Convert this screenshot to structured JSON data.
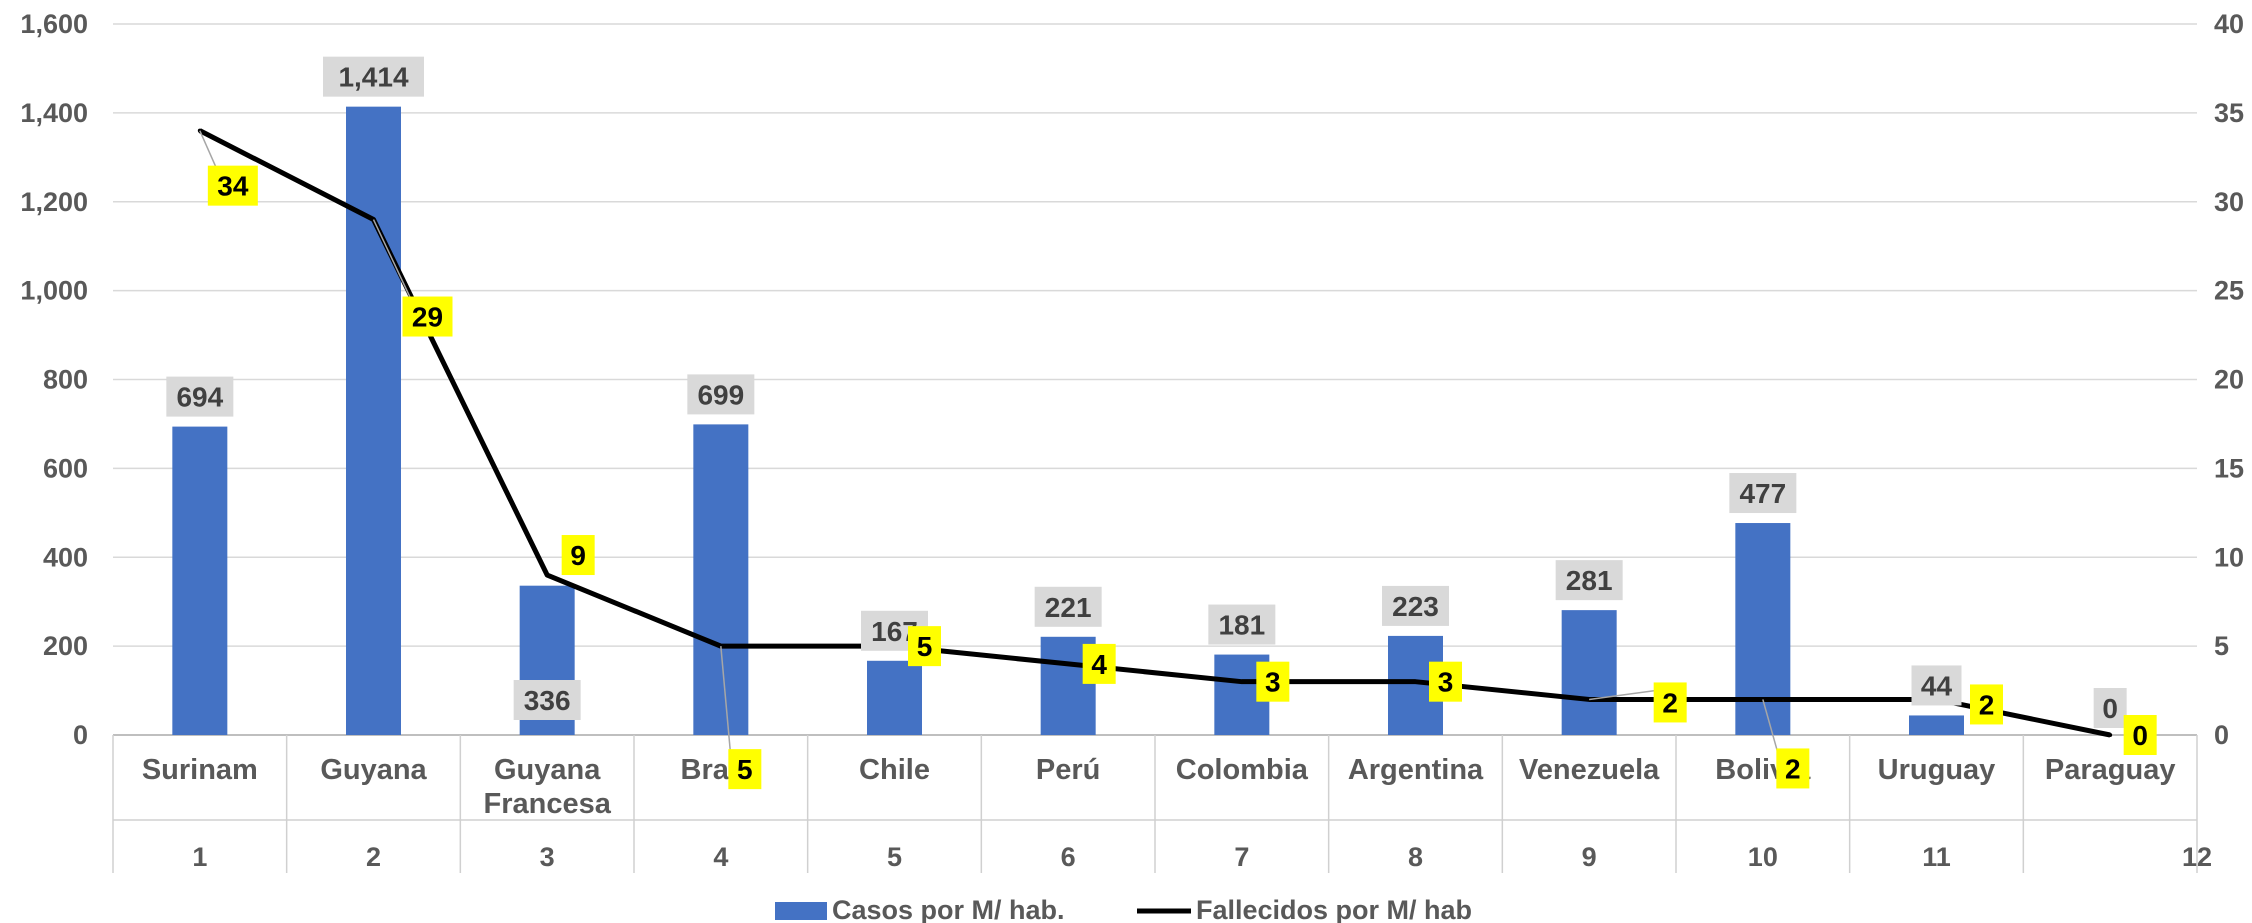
{
  "chart_data": {
    "type": "bar",
    "categories": [
      "Surinam",
      "Guyana",
      "Guyana Francesa",
      "Brasil",
      "Chile",
      "Perú",
      "Colombia",
      "Argentina",
      "Venezuela",
      "Bolivia",
      "Uruguay",
      "Paraguay"
    ],
    "category_lines": [
      [
        "Surinam"
      ],
      [
        "Guyana"
      ],
      [
        "Guyana",
        "Francesa"
      ],
      [
        "Brasil"
      ],
      [
        "Chile"
      ],
      [
        "Perú"
      ],
      [
        "Colombia"
      ],
      [
        "Argentina"
      ],
      [
        "Venezuela"
      ],
      [
        "Bolivia"
      ],
      [
        "Uruguay"
      ],
      [
        "Paraguay"
      ]
    ],
    "index_labels": [
      "1",
      "2",
      "3",
      "4",
      "5",
      "6",
      "7",
      "8",
      "9",
      "10",
      "11",
      "12"
    ],
    "series": [
      {
        "name": "Casos por M/ hab.",
        "type": "bar",
        "axis": "left",
        "color": "#4472C4",
        "values": [
          694,
          1414,
          336,
          699,
          167,
          221,
          181,
          223,
          281,
          477,
          44,
          0
        ],
        "labels": [
          "694",
          "1,414",
          "336",
          "699",
          "167",
          "221",
          "181",
          "223",
          "281",
          "477",
          "44",
          "0"
        ]
      },
      {
        "name": "Fallecidos por M/ hab",
        "type": "line",
        "axis": "right",
        "color": "#000000",
        "values": [
          34,
          29,
          9,
          5,
          5,
          4,
          3,
          3,
          2,
          2,
          2,
          0
        ],
        "labels": [
          "34",
          "29",
          "9",
          "5",
          "5",
          "4",
          "3",
          "3",
          "2",
          "2",
          "2",
          "0"
        ]
      }
    ],
    "y_left": {
      "min": 0,
      "max": 1600,
      "ticks": [
        "0",
        "200",
        "400",
        "600",
        "800",
        "1,000",
        "1,200",
        "1,400",
        "1,600"
      ]
    },
    "y_right": {
      "min": 0,
      "max": 40,
      "ticks": [
        "0",
        "5",
        "10",
        "15",
        "20",
        "25",
        "30",
        "35",
        "40"
      ]
    },
    "grid": true,
    "legend_position": "bottom",
    "title": "",
    "xlabel": "",
    "ylabel": ""
  }
}
